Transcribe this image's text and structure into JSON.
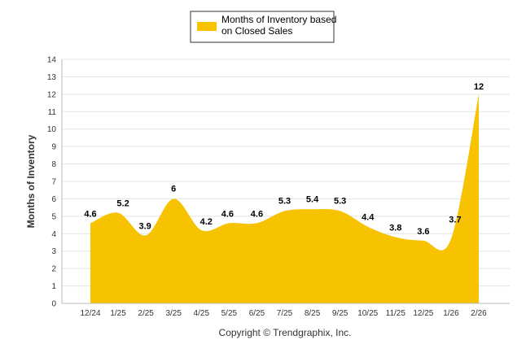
{
  "chart_data": {
    "type": "area",
    "categories": [
      "12/24",
      "1/25",
      "2/25",
      "3/25",
      "4/25",
      "5/25",
      "6/25",
      "7/25",
      "8/25",
      "9/25",
      "10/25",
      "11/25",
      "12/25",
      "1/26",
      "2/26"
    ],
    "series": [
      {
        "name": "Months of Inventory based on Closed Sales",
        "legend_lines": [
          "Months of Inventory based",
          "on Closed Sales"
        ],
        "values": [
          4.6,
          5.2,
          3.9,
          6,
          4.2,
          4.6,
          4.6,
          5.3,
          5.4,
          5.3,
          4.4,
          3.8,
          3.6,
          3.7,
          12
        ],
        "labels": [
          "4.6",
          "5.2",
          "3.9",
          "6",
          "4.2",
          "4.6",
          "4.6",
          "5.3",
          "5.4",
          "5.3",
          "4.4",
          "3.8",
          "3.6",
          "3.7",
          "12"
        ],
        "color": "#F7C200"
      }
    ],
    "ylabel": "Months of Inventory",
    "xlabel": "",
    "ylim": [
      0,
      14
    ],
    "yticks": [
      0,
      1,
      2,
      3,
      4,
      5,
      6,
      7,
      8,
      9,
      10,
      11,
      12,
      13,
      14
    ],
    "grid": true,
    "legend_position": "top-center"
  },
  "credit": "Copyright © Trendgraphix, Inc."
}
